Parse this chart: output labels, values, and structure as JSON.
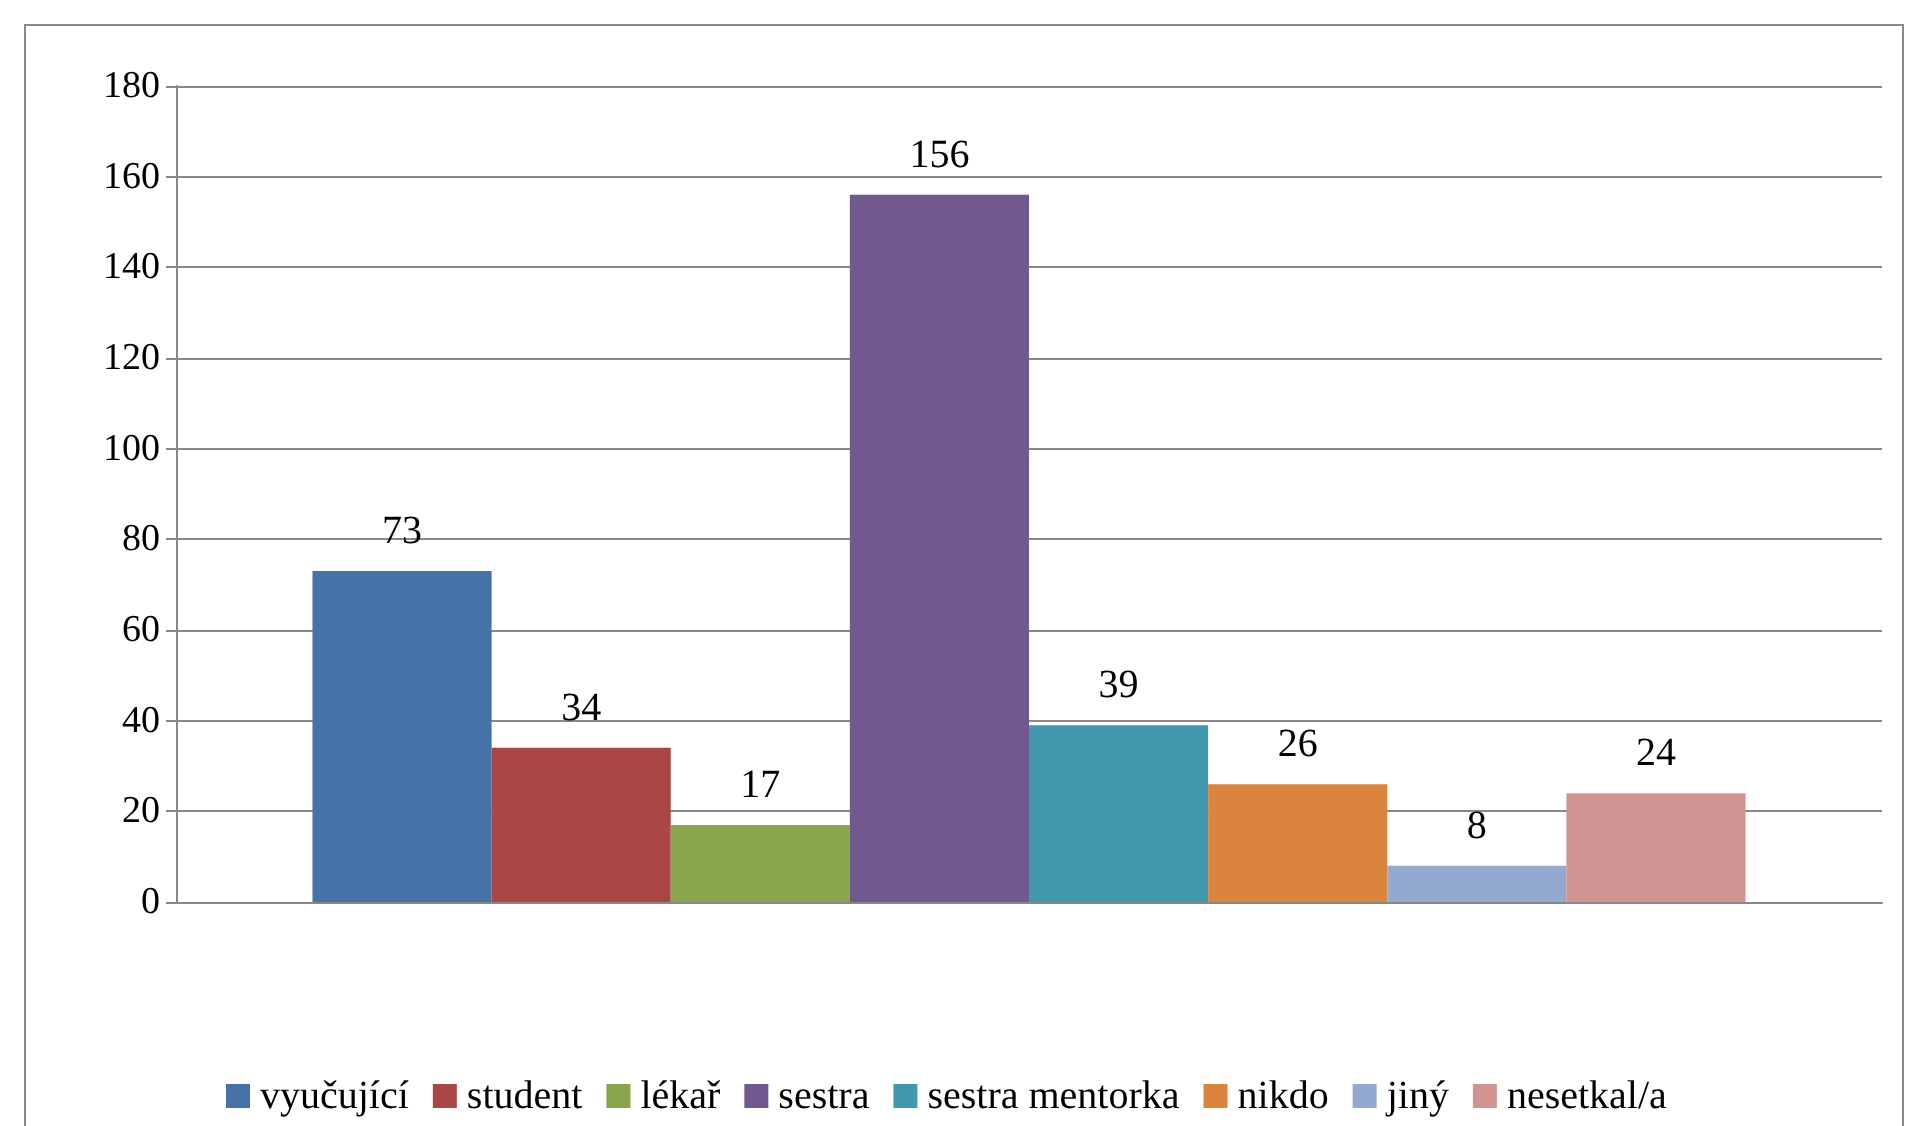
{
  "chart_data": {
    "type": "bar",
    "categories": [
      null
    ],
    "series": [
      {
        "name": "vyučující",
        "color": "#4572a7",
        "values": [
          73
        ]
      },
      {
        "name": "student",
        "color": "#aa4643",
        "values": [
          34
        ]
      },
      {
        "name": "lékař",
        "color": "#89a54e",
        "values": [
          17
        ]
      },
      {
        "name": "sestra",
        "color": "#71588f",
        "values": [
          156
        ]
      },
      {
        "name": "sestra mentorka",
        "color": "#4198af",
        "values": [
          39
        ]
      },
      {
        "name": "nikdo",
        "color": "#db843d",
        "values": [
          26
        ]
      },
      {
        "name": "jiný",
        "color": "#93a9cf",
        "values": [
          8
        ]
      },
      {
        "name": "nesetkal/a",
        "color": "#d19392",
        "values": [
          24
        ]
      }
    ],
    "ylim": [
      0,
      180
    ],
    "yticks": [
      0,
      20,
      40,
      60,
      80,
      100,
      120,
      140,
      160,
      180
    ],
    "grid": "y",
    "legend": "bottom",
    "data_labels": true
  }
}
